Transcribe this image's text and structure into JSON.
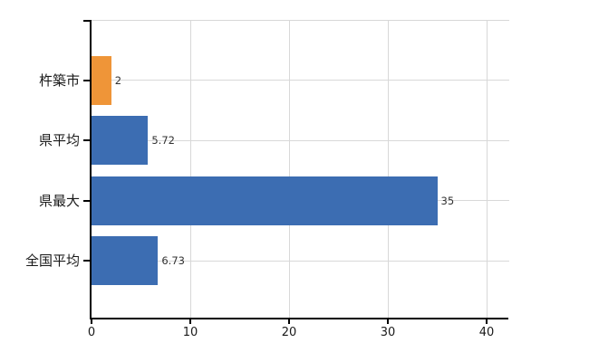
{
  "chart_data": {
    "type": "bar",
    "orientation": "horizontal",
    "title": "",
    "xlabel": "",
    "ylabel": "",
    "categories": [
      "杵築市",
      "県平均",
      "県最大",
      "全国平均"
    ],
    "values": [
      2,
      5.72,
      35,
      6.73
    ],
    "value_labels": [
      "2",
      "5.72",
      "35",
      "6.73"
    ],
    "bar_colors": [
      "#ef9538",
      "#3c6db2",
      "#3c6db2",
      "#3c6db2"
    ],
    "xticks": [
      0,
      10,
      20,
      30,
      40
    ],
    "xtick_labels": [
      "0",
      "10",
      "20",
      "30",
      "40"
    ],
    "xlim": [
      0,
      42.3
    ],
    "grid": true,
    "legend": null,
    "colors": {
      "background": "#ffffff",
      "gridline": "#d8d8d8",
      "axis": "#000000",
      "text": "#1a1a1a",
      "value_label_text": "#333333",
      "orange_bar": "#ef9538",
      "blue_bar": "#3c6db2"
    }
  }
}
